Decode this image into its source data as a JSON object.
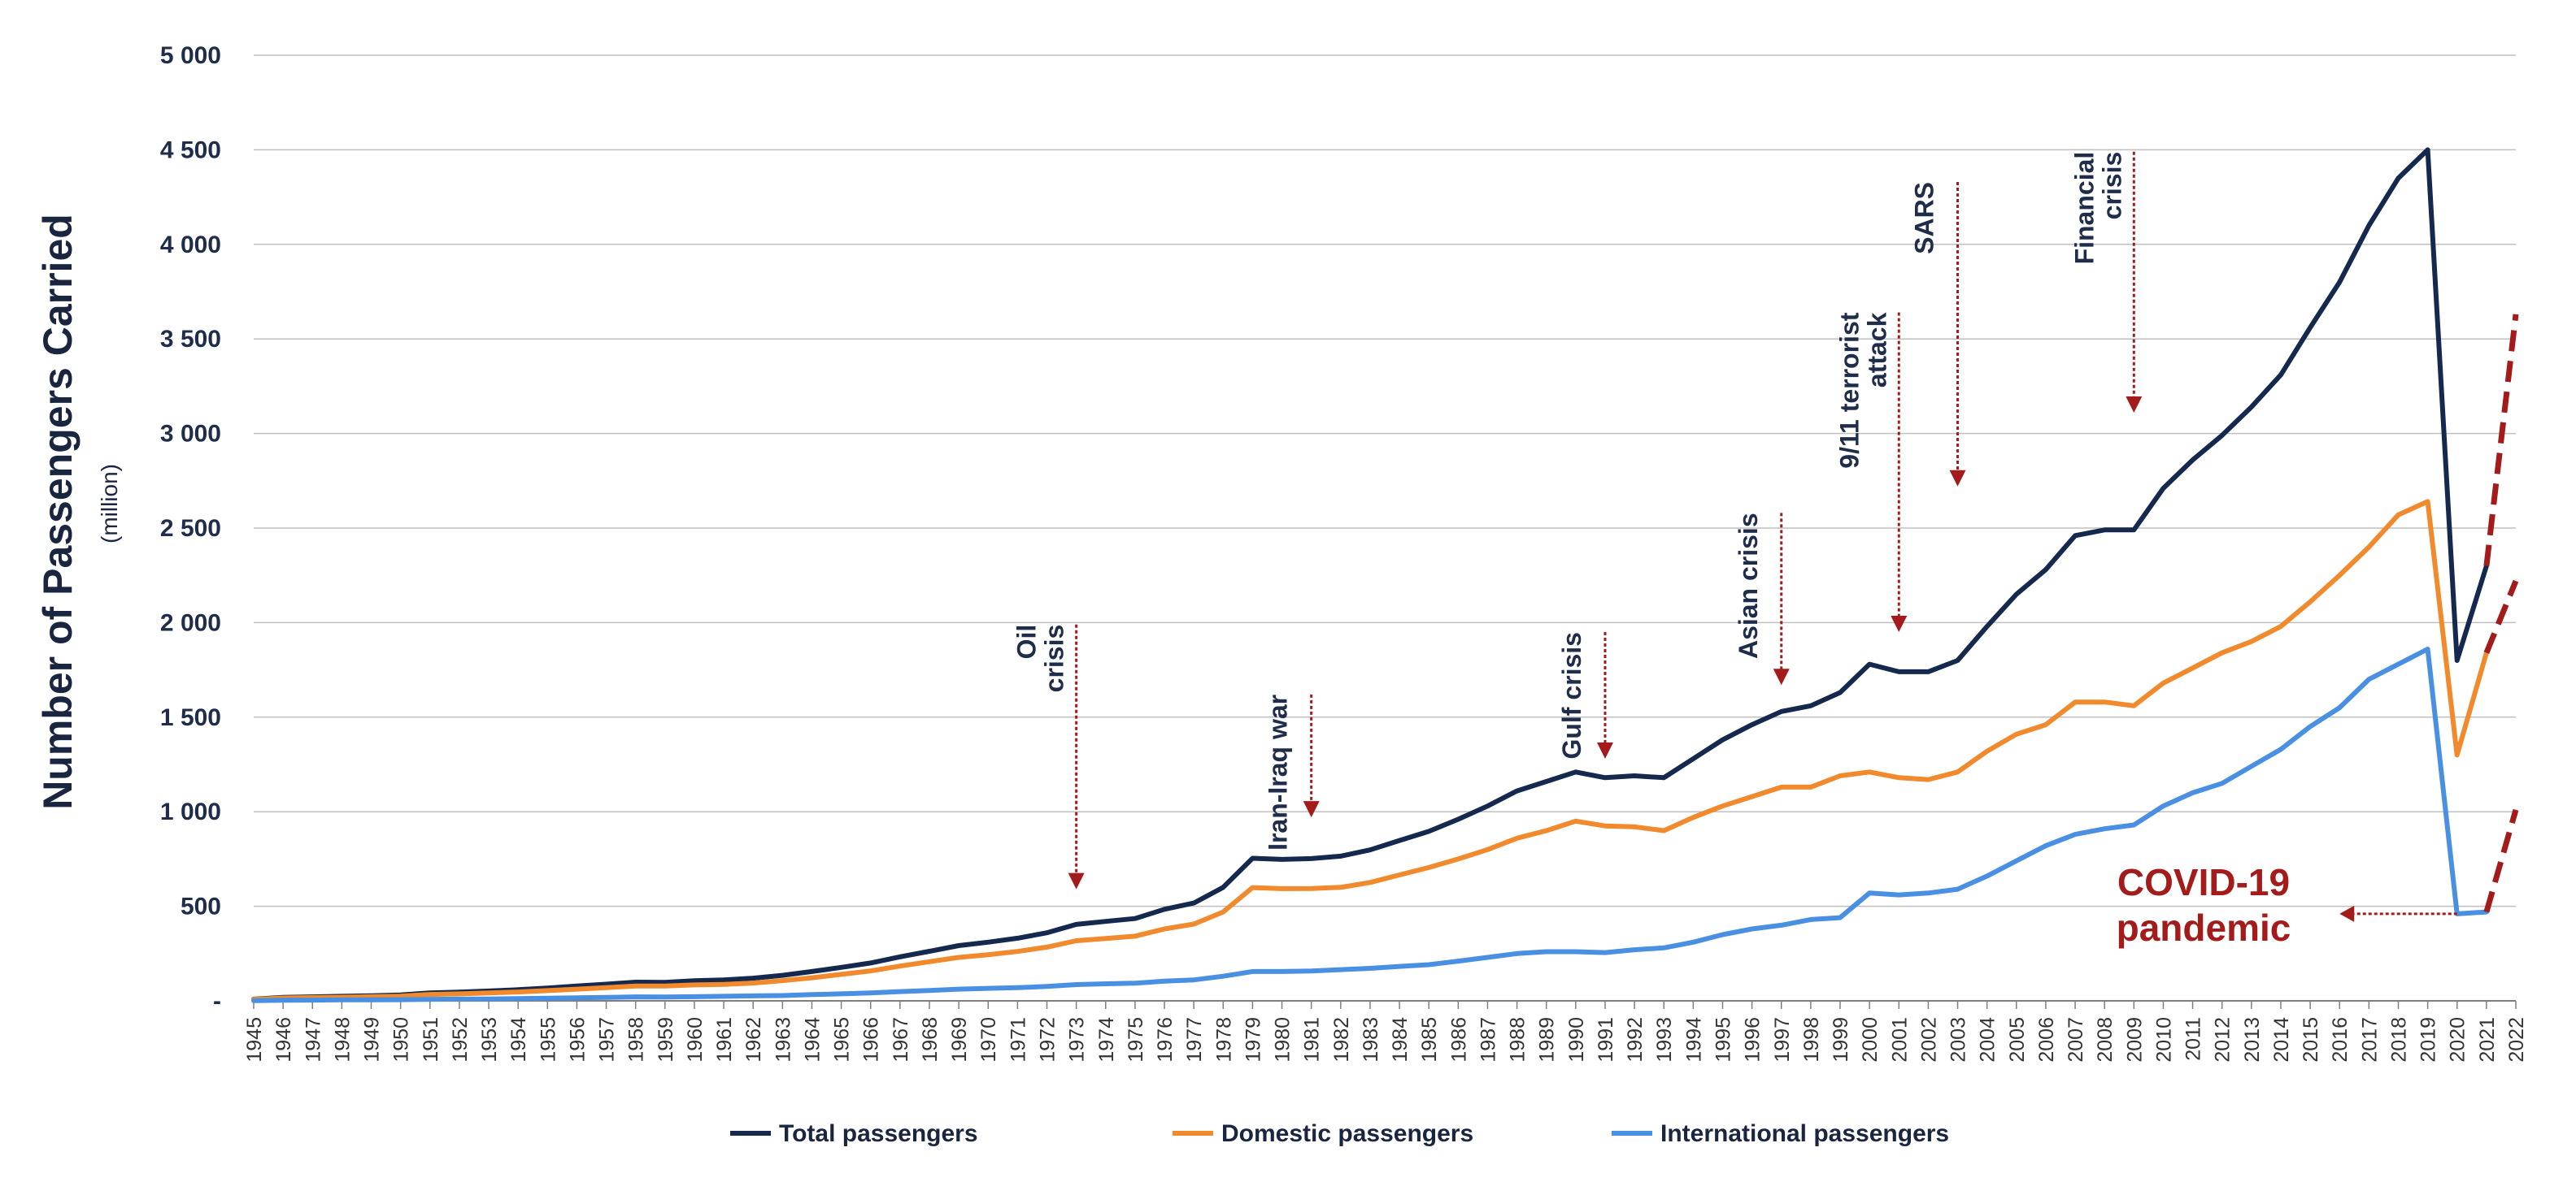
{
  "colors": {
    "total": "#14294d",
    "domestic": "#f08a2c",
    "international": "#4a90e2",
    "annotation_arrow": "#a31b1b",
    "grid": "#bfbfbf"
  },
  "chart_data": {
    "type": "line",
    "title": "",
    "ylabel": "Number of Passengers Carried",
    "ylabel_unit": "(million)",
    "xlabel": "",
    "ylim": [
      0,
      5000
    ],
    "yticks": [
      {
        "value": 0,
        "label": "-"
      },
      {
        "value": 500,
        "label": "500"
      },
      {
        "value": 1000,
        "label": "1 000"
      },
      {
        "value": 1500,
        "label": "1 500"
      },
      {
        "value": 2000,
        "label": "2 000"
      },
      {
        "value": 2500,
        "label": "2 500"
      },
      {
        "value": 3000,
        "label": "3 000"
      },
      {
        "value": 3500,
        "label": "3 500"
      },
      {
        "value": 4000,
        "label": "4 000"
      },
      {
        "value": 4500,
        "label": "4 500"
      },
      {
        "value": 5000,
        "label": "5 000"
      }
    ],
    "years": [
      "1945",
      "1946",
      "1947",
      "1948",
      "1949",
      "1950",
      "1951",
      "1952",
      "1953",
      "1954",
      "1955",
      "1956",
      "1957",
      "1958",
      "1959",
      "1960",
      "1961",
      "1962",
      "1963",
      "1964",
      "1965",
      "1966",
      "1967",
      "1968",
      "1969",
      "1970",
      "1971",
      "1972",
      "1973",
      "1974",
      "1975",
      "1976",
      "1977",
      "1978",
      "1979",
      "1980",
      "1981",
      "1982",
      "1983",
      "1984",
      "1985",
      "1986",
      "1987",
      "1988",
      "1989",
      "1990",
      "1991",
      "1992",
      "1993",
      "1994",
      "1995",
      "1996",
      "1997",
      "1998",
      "1999",
      "2000",
      "2001",
      "2002",
      "2003",
      "2004",
      "2005",
      "2006",
      "2007",
      "2008",
      "2009",
      "2010",
      "2011",
      "2012",
      "2013",
      "2014",
      "2015",
      "2016",
      "2017",
      "2018",
      "2019",
      "2020",
      "2021",
      "2022"
    ],
    "series": [
      {
        "name": "Total passengers",
        "key": "total",
        "values": [
          9,
          18,
          21,
          24,
          27,
          31,
          42,
          46,
          52,
          59,
          68,
          78,
          88,
          99,
          98,
          106,
          111,
          120,
          135,
          155,
          177,
          200,
          233,
          262,
          292,
          310,
          331,
          360,
          404,
          420,
          435,
          484,
          517,
          600,
          754,
          748,
          752,
          765,
          798,
          848,
          896,
          960,
          1030,
          1110,
          1160,
          1210,
          1180,
          1190,
          1180,
          1280,
          1380,
          1460,
          1530,
          1560,
          1630,
          1780,
          1740,
          1740,
          1800,
          1980,
          2150,
          2280,
          2460,
          2490,
          2490,
          2710,
          2860,
          2990,
          3140,
          3310,
          3560,
          3800,
          4100,
          4350,
          4500,
          1800,
          2300
        ],
        "projection": [
          [
            2021,
            2300
          ],
          [
            2022,
            3630
          ]
        ]
      },
      {
        "name": "Domestic passengers",
        "key": "domestic",
        "values": [
          8,
          15,
          17,
          19,
          22,
          25,
          34,
          37,
          42,
          47,
          54,
          62,
          70,
          78,
          78,
          84,
          87,
          94,
          107,
          122,
          140,
          158,
          184,
          207,
          230,
          244,
          261,
          284,
          318,
          330,
          342,
          380,
          406,
          470,
          599,
          593,
          594,
          600,
          626,
          666,
          705,
          750,
          800,
          860,
          900,
          950,
          925,
          920,
          900,
          970,
          1030,
          1080,
          1130,
          1130,
          1190,
          1210,
          1180,
          1170,
          1210,
          1320,
          1410,
          1460,
          1580,
          1580,
          1560,
          1680,
          1760,
          1840,
          1900,
          1980,
          2110,
          2250,
          2400,
          2570,
          2640,
          1300,
          1840
        ],
        "projection": [
          [
            2021,
            1840
          ],
          [
            2022,
            2220
          ]
        ]
      },
      {
        "name": "International passengers",
        "key": "international",
        "values": [
          1,
          3,
          4,
          5,
          5,
          6,
          8,
          9,
          10,
          12,
          14,
          16,
          18,
          21,
          20,
          22,
          24,
          26,
          28,
          33,
          37,
          42,
          49,
          55,
          62,
          66,
          70,
          76,
          86,
          90,
          93,
          104,
          111,
          130,
          155,
          155,
          158,
          165,
          172,
          182,
          191,
          210,
          230,
          250,
          260,
          260,
          255,
          270,
          280,
          310,
          350,
          380,
          400,
          430,
          440,
          570,
          560,
          570,
          590,
          660,
          740,
          820,
          880,
          910,
          930,
          1030,
          1100,
          1150,
          1240,
          1330,
          1450,
          1550,
          1700,
          1780,
          1860,
          460,
          470
        ],
        "projection": [
          [
            2021,
            470
          ],
          [
            2022,
            1010
          ]
        ]
      }
    ],
    "events": [
      {
        "label": "Oil\ncrisis",
        "year": 1973,
        "text_top": 1990,
        "arrow_to": 590
      },
      {
        "label": "Iran-Iraq war",
        "year": 1981,
        "text_top": 1620,
        "arrow_to": 970
      },
      {
        "label": "Gulf crisis",
        "year": 1991,
        "text_top": 1950,
        "arrow_to": 1280
      },
      {
        "label": "Asian crisis",
        "year": 1997,
        "text_top": 2580,
        "arrow_to": 1670
      },
      {
        "label": "9/11 terrorist\nattack",
        "year": 2001,
        "text_top": 3640,
        "arrow_to": 1950
      },
      {
        "label": "SARS",
        "year": 2003,
        "text_top": 4330,
        "arrow_to": 2720
      },
      {
        "label": "Financial\ncrisis",
        "year": 2009,
        "text_top": 4490,
        "arrow_to": 3110
      }
    ],
    "covid_annotation": {
      "label": "COVID-19\npandemic",
      "arrow_from_year": 2020,
      "arrow_to_year": 2016,
      "value": 460
    },
    "legend": [
      "Total passengers",
      "Domestic passengers",
      "International passengers"
    ],
    "legend_position": "bottom"
  }
}
